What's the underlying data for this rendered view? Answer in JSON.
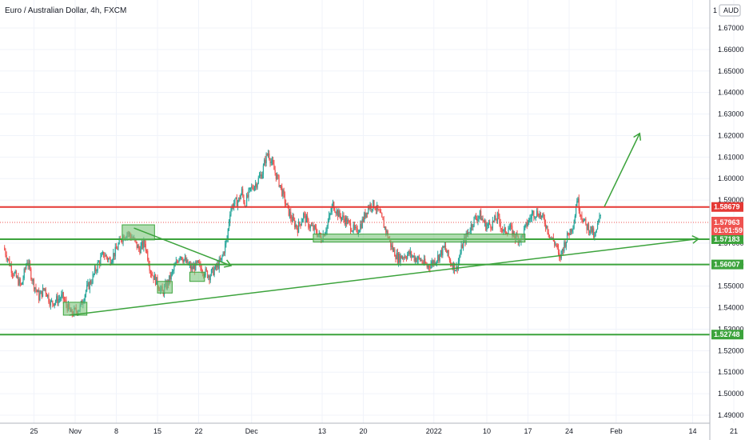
{
  "header": {
    "title": "Euro / Australian Dollar, 4h, FXCM",
    "currency_badge": "AUD",
    "logo_text": "1"
  },
  "colors": {
    "up": "#26a69a",
    "down": "#ef5350",
    "green_line": "#3ca33c",
    "red_line": "#e53935",
    "zone_fill": "#7cc47c",
    "grid": "#f0f3fa",
    "axis_text": "#131722"
  },
  "chart_data": {
    "type": "candlestick",
    "symbol": "Euro / Australian Dollar",
    "interval": "4h",
    "source": "FXCM",
    "ylim": [
      1.48652,
      1.68832
    ],
    "y_ticks": [
      "1.67000",
      "1.66000",
      "1.65000",
      "1.64000",
      "1.63000",
      "1.62000",
      "1.61000",
      "1.60000",
      "1.59000",
      "1.57000",
      "1.56000",
      "1.55000",
      "1.54000",
      "1.53000",
      "1.52000",
      "1.51000",
      "1.50000",
      "1.49000"
    ],
    "x_ticks": [
      {
        "label": "25",
        "day": -7
      },
      {
        "label": "Nov",
        "day": 0
      },
      {
        "label": "8",
        "day": 7
      },
      {
        "label": "15",
        "day": 14
      },
      {
        "label": "22",
        "day": 21
      },
      {
        "label": "Dec",
        "day": 30
      },
      {
        "label": "13",
        "day": 42
      },
      {
        "label": "20",
        "day": 49
      },
      {
        "label": "2022",
        "day": 61
      },
      {
        "label": "10",
        "day": 70
      },
      {
        "label": "17",
        "day": 77
      },
      {
        "label": "24",
        "day": 84
      },
      {
        "label": "Feb",
        "day": 92
      },
      {
        "label": "14",
        "day": 105
      },
      {
        "label": "21",
        "day": 112
      }
    ],
    "price_points": [
      [
        -12,
        1.568
      ],
      [
        -10.5,
        1.557
      ],
      [
        -9,
        1.55
      ],
      [
        -8,
        1.562
      ],
      [
        -7,
        1.552
      ],
      [
        -6,
        1.545
      ],
      [
        -5,
        1.549
      ],
      [
        -4,
        1.542
      ],
      [
        -2,
        1.545
      ],
      [
        -0.5,
        1.537
      ],
      [
        1,
        1.54
      ],
      [
        2,
        1.548
      ],
      [
        3,
        1.553
      ],
      [
        4,
        1.56
      ],
      [
        5,
        1.565
      ],
      [
        6,
        1.562
      ],
      [
        7,
        1.566
      ],
      [
        8,
        1.572
      ],
      [
        9,
        1.575
      ],
      [
        10,
        1.572
      ],
      [
        11,
        1.567
      ],
      [
        12,
        1.57
      ],
      [
        12.5,
        1.564
      ],
      [
        13,
        1.557
      ],
      [
        14,
        1.552
      ],
      [
        15,
        1.547
      ],
      [
        16,
        1.552
      ],
      [
        17,
        1.558
      ],
      [
        18,
        1.565
      ],
      [
        19,
        1.561
      ],
      [
        20,
        1.558
      ],
      [
        21,
        1.56
      ],
      [
        22,
        1.557
      ],
      [
        23,
        1.555
      ],
      [
        24,
        1.558
      ],
      [
        25,
        1.562
      ],
      [
        26,
        1.572
      ],
      [
        26.5,
        1.585
      ],
      [
        27,
        1.588
      ],
      [
        28,
        1.59
      ],
      [
        28.5,
        1.594
      ],
      [
        29,
        1.588
      ],
      [
        30,
        1.595
      ],
      [
        31,
        1.598
      ],
      [
        32,
        1.603
      ],
      [
        32.5,
        1.609
      ],
      [
        33,
        1.612
      ],
      [
        34,
        1.604
      ],
      [
        35,
        1.597
      ],
      [
        36,
        1.588
      ],
      [
        37,
        1.581
      ],
      [
        38,
        1.577
      ],
      [
        39,
        1.583
      ],
      [
        40,
        1.578
      ],
      [
        41,
        1.576
      ],
      [
        42,
        1.572
      ],
      [
        43,
        1.578
      ],
      [
        44,
        1.588
      ],
      [
        45,
        1.583
      ],
      [
        46,
        1.581
      ],
      [
        47,
        1.578
      ],
      [
        48,
        1.575
      ],
      [
        49,
        1.58
      ],
      [
        50,
        1.587
      ],
      [
        51,
        1.588
      ],
      [
        52,
        1.583
      ],
      [
        53,
        1.576
      ],
      [
        54,
        1.568
      ],
      [
        55,
        1.563
      ],
      [
        56,
        1.564
      ],
      [
        57,
        1.565
      ],
      [
        58,
        1.563
      ],
      [
        59,
        1.562
      ],
      [
        60,
        1.559
      ],
      [
        61,
        1.561
      ],
      [
        62,
        1.564
      ],
      [
        63,
        1.568
      ],
      [
        64,
        1.561
      ],
      [
        65,
        1.558
      ],
      [
        66,
        1.569
      ],
      [
        67,
        1.575
      ],
      [
        68,
        1.581
      ],
      [
        69,
        1.583
      ],
      [
        70,
        1.578
      ],
      [
        71,
        1.579
      ],
      [
        72,
        1.582
      ],
      [
        73,
        1.575
      ],
      [
        74,
        1.577
      ],
      [
        75,
        1.573
      ],
      [
        76,
        1.572
      ],
      [
        77,
        1.579
      ],
      [
        78,
        1.584
      ],
      [
        79,
        1.584
      ],
      [
        80,
        1.58
      ],
      [
        81,
        1.573
      ],
      [
        82,
        1.569
      ],
      [
        82.5,
        1.562
      ],
      [
        83,
        1.567
      ],
      [
        84,
        1.574
      ],
      [
        85,
        1.58
      ],
      [
        85.5,
        1.591
      ],
      [
        86,
        1.585
      ],
      [
        87,
        1.578
      ],
      [
        88,
        1.576
      ],
      [
        88.5,
        1.572
      ],
      [
        89,
        1.578
      ],
      [
        89.5,
        1.583
      ]
    ],
    "horizontal_levels": [
      {
        "price": 1.58679,
        "label": "1.58679",
        "color": "red"
      },
      {
        "price": 1.57183,
        "label": "1.57183",
        "color": "green"
      },
      {
        "price": 1.56007,
        "label": "1.56007",
        "color": "green"
      },
      {
        "price": 1.52748,
        "label": "1.52748",
        "color": "green"
      }
    ],
    "current_price": {
      "label": "1.57963",
      "countdown": "01:01:59",
      "price": 1.57963
    },
    "zones": [
      {
        "day_from": -2,
        "day_to": 2,
        "price_from": 1.5365,
        "price_to": 1.5425
      },
      {
        "day_from": 8,
        "day_to": 13.5,
        "price_from": 1.5715,
        "price_to": 1.5785
      },
      {
        "day_from": 14,
        "day_to": 16.5,
        "price_from": 1.5468,
        "price_to": 1.5522
      },
      {
        "day_from": 19.5,
        "day_to": 22,
        "price_from": 1.5522,
        "price_to": 1.5565
      },
      {
        "day_from": 40.5,
        "day_to": 76.5,
        "price_from": 1.5705,
        "price_to": 1.5742
      }
    ],
    "trend_lines": [
      {
        "day_from": -1,
        "price_from": 1.5365,
        "day_to": 106,
        "price_to": 1.572,
        "arrow": true
      },
      {
        "day_from": 10,
        "price_from": 1.577,
        "day_to": 26.5,
        "price_to": 1.5595,
        "arrow": true
      },
      {
        "day_from": 90,
        "price_from": 1.587,
        "day_to": 96,
        "price_to": 1.621,
        "arrow": true
      }
    ]
  }
}
